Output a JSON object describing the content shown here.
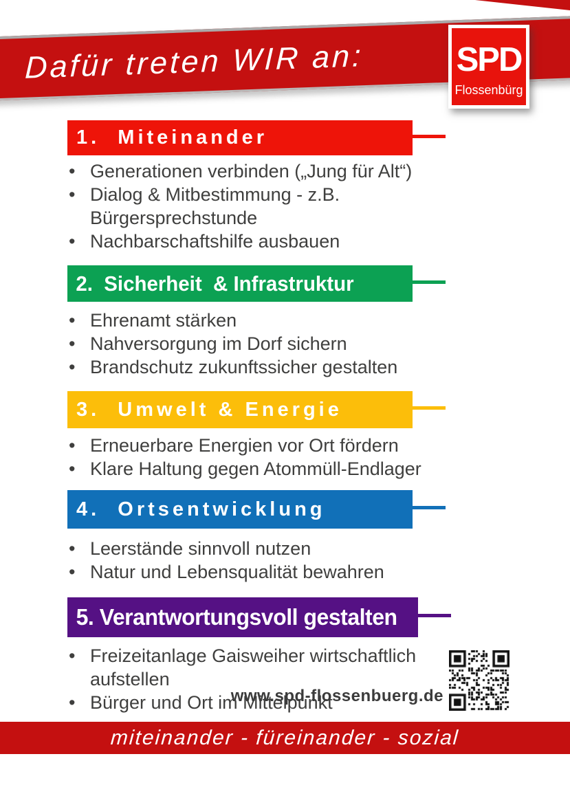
{
  "banner": {
    "headline": "Dafür treten WIR an:",
    "color": "#c41010"
  },
  "logo": {
    "party": "SPD",
    "location": "Flossenbürg",
    "color": "#e8130c"
  },
  "sections": [
    {
      "label": "1.  Miteinander",
      "color": "#ee1409",
      "bullets": [
        "Generationen verbinden („Jung für Alt“)",
        "Dialog & Mitbestimmung - z.B. Bürgersprechstunde",
        "Nachbarschaftshilfe ausbauen"
      ]
    },
    {
      "label": "2.  Sicherheit  & Infrastruktur",
      "color": "#0ca153",
      "bullets": [
        "Ehrenamt stärken",
        "Nahversorgung im Dorf sichern",
        "Brandschutz zukunftssicher gestalten"
      ]
    },
    {
      "label": "3.  Umwelt & Energie",
      "color": "#fcbe0a",
      "bullets": [
        "Erneuerbare Energien vor Ort fördern",
        "Klare Haltung gegen Atommüll-Endlager"
      ]
    },
    {
      "label": "4.  Ortsentwicklung",
      "color": "#1170b8",
      "bullets": [
        "Leerstände sinnvoll nutzen",
        "Natur und Lebensqualität bewahren"
      ]
    },
    {
      "label": "5. Verantwortungsvoll gestalten",
      "color": "#551184",
      "bullets": [
        "Freizeitanlage Gaisweiher wirtschaftlich aufstellen",
        "Bürger und Ort im Mittelpunkt"
      ]
    }
  ],
  "website": {
    "url": "www.spd-flossenbuerg.de"
  },
  "qr": {
    "name": "qr-code"
  },
  "footer": {
    "slogan": "miteinander - füreinander - sozial",
    "color": "#c41010"
  }
}
